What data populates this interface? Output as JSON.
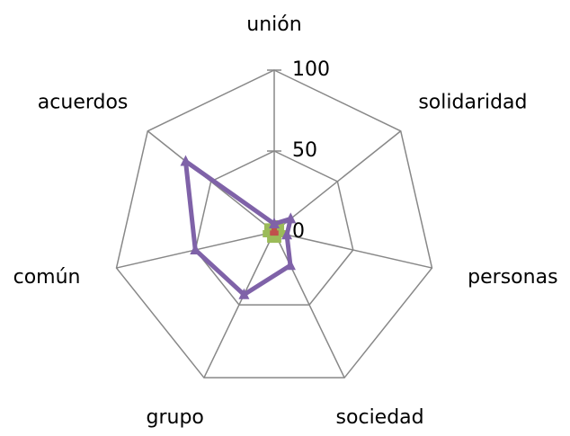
{
  "chart_data": {
    "type": "radar",
    "categories": [
      "unión",
      "solidaridad",
      "personas",
      "sociedad",
      "grupo",
      "común",
      "acuerdos"
    ],
    "series": [
      {
        "color": "#4f81bd",
        "values": [
          4,
          4,
          4,
          4,
          4,
          4,
          4
        ]
      },
      {
        "color": "#c0504d",
        "values": [
          2,
          2,
          2,
          2,
          2,
          2,
          2
        ]
      },
      {
        "color": "#9bbb59",
        "values": [
          5,
          5,
          5,
          5,
          5,
          5,
          5
        ]
      },
      {
        "color": "#7f62a8",
        "values": [
          5,
          13,
          8,
          23,
          43,
          50,
          70
        ]
      }
    ],
    "ylim": [
      0,
      100
    ],
    "yticks": [
      0,
      50,
      100
    ],
    "grid": true
  }
}
